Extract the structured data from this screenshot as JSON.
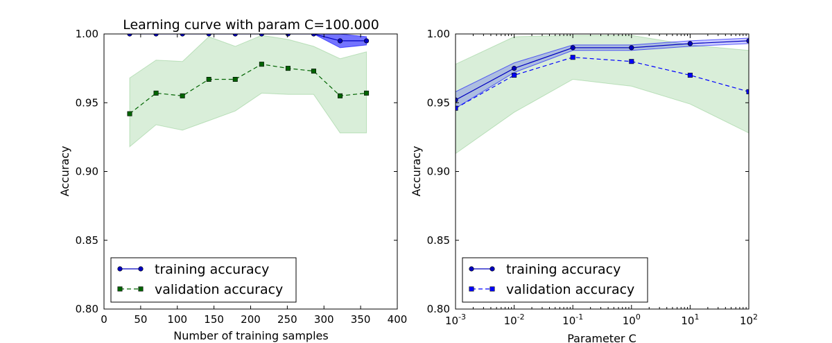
{
  "chart_data": [
    {
      "type": "line",
      "title": "Learning curve with param C=100.000",
      "xlabel": "Number of training samples",
      "ylabel": "Accuracy",
      "xlim": [
        0,
        400
      ],
      "ylim": [
        0.8,
        1.0
      ],
      "xscale": "linear",
      "grid": false,
      "legend_position": "lower-left",
      "x_ticks": [
        "0",
        "50",
        "100",
        "150",
        "200",
        "250",
        "300",
        "350",
        "400"
      ],
      "y_ticks": [
        "0.80",
        "0.85",
        "0.90",
        "0.95",
        "1.00"
      ],
      "x": [
        35,
        71,
        107,
        143,
        179,
        215,
        251,
        286,
        322,
        358
      ],
      "series": [
        {
          "name": "training accuracy",
          "color": "#0000bf",
          "linestyle": "solid",
          "marker": "circle",
          "values": [
            1.0,
            1.0,
            1.0,
            1.0,
            1.0,
            1.0,
            1.0,
            1.0,
            0.995,
            0.995
          ],
          "band_upper": [
            1.0,
            1.0,
            1.0,
            1.0,
            1.0,
            1.0,
            1.0,
            1.0,
            1.0,
            0.998
          ],
          "band_lower": [
            1.0,
            1.0,
            1.0,
            1.0,
            1.0,
            1.0,
            1.0,
            1.0,
            0.99,
            0.992
          ],
          "band_color": "#0000ff"
        },
        {
          "name": "validation accuracy",
          "color": "#006400",
          "linestyle": "dashed",
          "marker": "square",
          "values": [
            0.942,
            0.957,
            0.955,
            0.967,
            0.967,
            0.978,
            0.975,
            0.973,
            0.955,
            0.957
          ],
          "band_upper": [
            0.968,
            0.981,
            0.98,
            0.998,
            0.991,
            0.999,
            0.996,
            0.991,
            0.982,
            0.987
          ],
          "band_lower": [
            0.918,
            0.934,
            0.93,
            0.937,
            0.944,
            0.957,
            0.956,
            0.956,
            0.928,
            0.928
          ],
          "band_color": "#2ca02c"
        }
      ]
    },
    {
      "type": "line",
      "title": "",
      "xlabel": "Parameter C",
      "ylabel": "Accuracy",
      "xlim": [
        0.001,
        100
      ],
      "ylim": [
        0.8,
        1.0
      ],
      "xscale": "log",
      "grid": false,
      "legend_position": "lower-left",
      "x_ticks": [
        {
          "base": "10",
          "exp": "-3"
        },
        {
          "base": "10",
          "exp": "-2"
        },
        {
          "base": "10",
          "exp": "-1"
        },
        {
          "base": "10",
          "exp": "0"
        },
        {
          "base": "10",
          "exp": "1"
        },
        {
          "base": "10",
          "exp": "2"
        }
      ],
      "y_ticks": [
        "0.80",
        "0.85",
        "0.90",
        "0.95",
        "1.00"
      ],
      "x": [
        0.001,
        0.01,
        0.1,
        1,
        10,
        100
      ],
      "series": [
        {
          "name": "training accuracy",
          "color": "#0000bf",
          "linestyle": "solid",
          "marker": "circle",
          "values": [
            0.952,
            0.975,
            0.99,
            0.99,
            0.993,
            0.995
          ],
          "band_upper": [
            0.958,
            0.979,
            0.992,
            0.992,
            0.995,
            0.997
          ],
          "band_lower": [
            0.946,
            0.972,
            0.988,
            0.988,
            0.991,
            0.993
          ],
          "band_color": "#0000ff"
        },
        {
          "name": "validation accuracy",
          "color": "#0000ff",
          "linestyle": "dashed",
          "marker": "square",
          "values": [
            0.946,
            0.97,
            0.983,
            0.98,
            0.97,
            0.958
          ],
          "band_upper": [
            0.978,
            0.998,
            0.999,
            0.999,
            0.992,
            0.988
          ],
          "band_lower": [
            0.913,
            0.943,
            0.967,
            0.962,
            0.949,
            0.928
          ],
          "band_color": "#2ca02c"
        }
      ]
    }
  ]
}
